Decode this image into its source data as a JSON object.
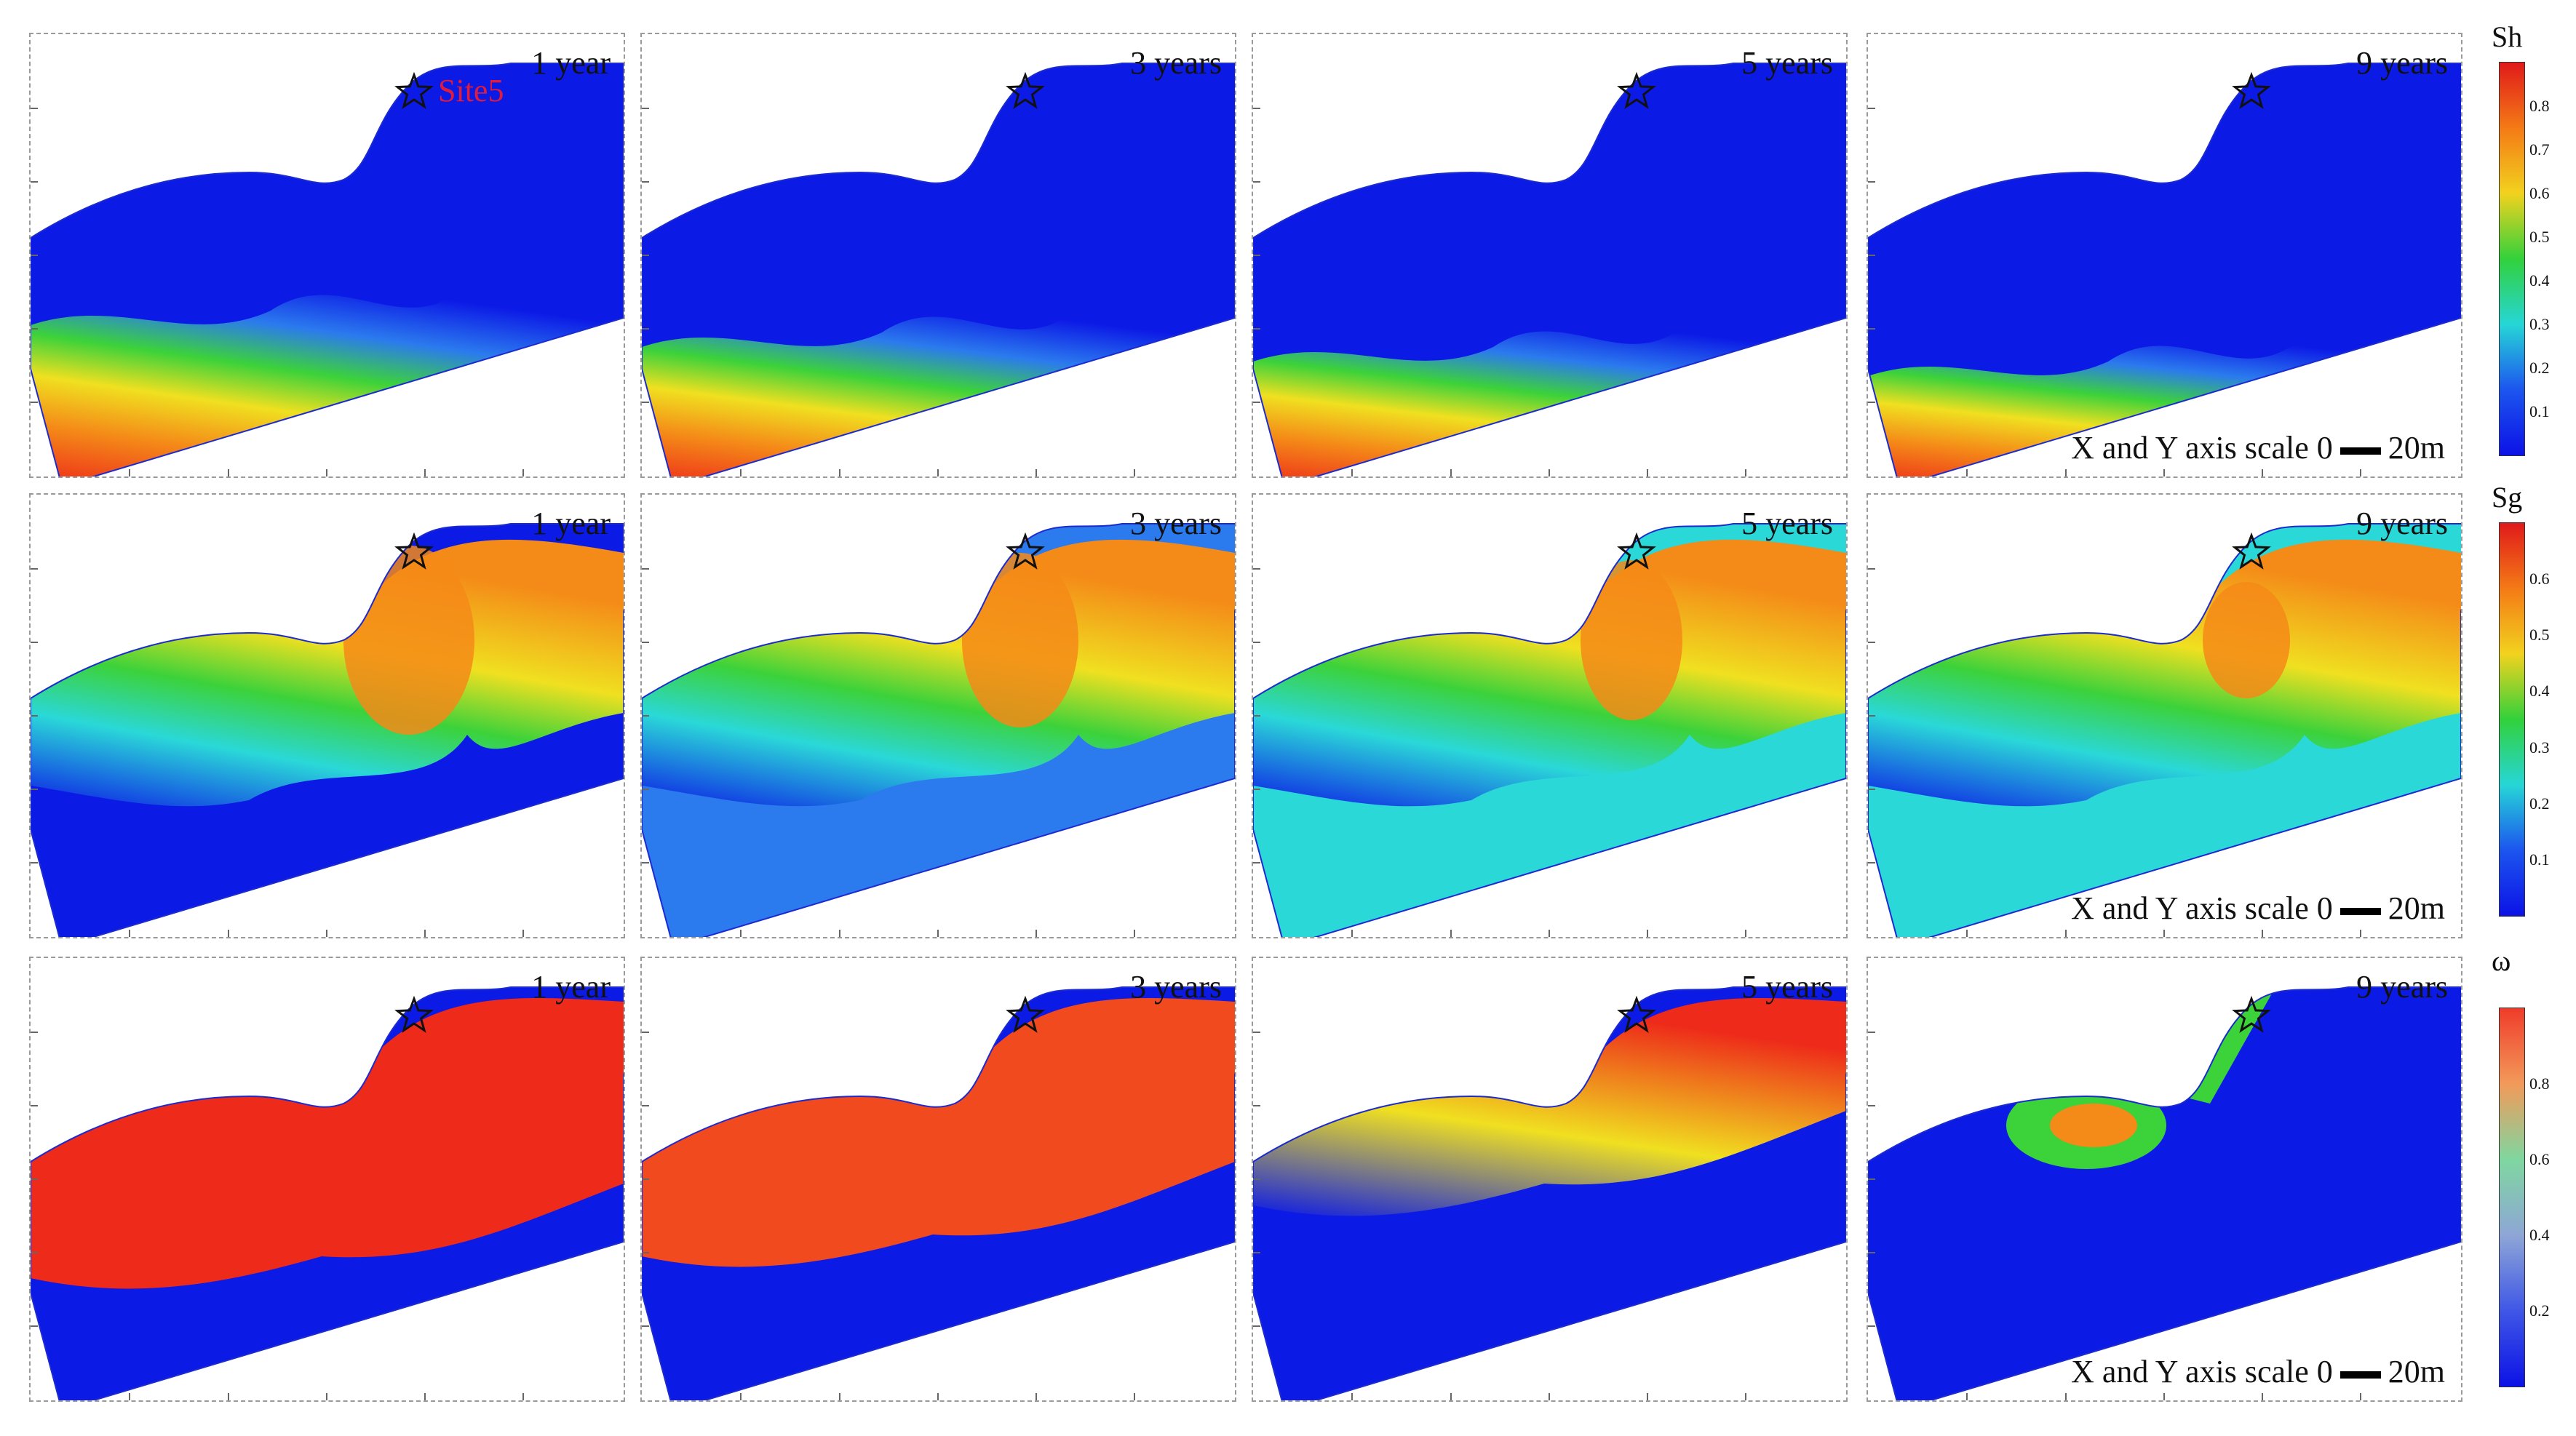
{
  "rows": [
    {
      "variable": "Sh",
      "panels": [
        {
          "time": "1 year",
          "site": "Site5"
        },
        {
          "time": "3 years"
        },
        {
          "time": "5 years"
        },
        {
          "time": "9 years",
          "scale": {
            "text": "X and Y axis scale 0",
            "unit": "20m"
          }
        }
      ],
      "colorbar": {
        "title": "Sh",
        "ticks": [
          "0.8",
          "0.7",
          "0.6",
          "0.5",
          "0.4",
          "0.3",
          "0.2",
          "0.1"
        ],
        "gradient": [
          "#e01a1a",
          "#f47a16",
          "#f2d21e",
          "#32d13b",
          "#26d6d6",
          "#1c55ef",
          "#0c12e6"
        ]
      }
    },
    {
      "variable": "Sg",
      "panels": [
        {
          "time": "1 year"
        },
        {
          "time": "3 years"
        },
        {
          "time": "5 years"
        },
        {
          "time": "9 years",
          "scale": {
            "text": "X and Y axis scale 0",
            "unit": "20m"
          }
        }
      ],
      "colorbar": {
        "title": "Sg",
        "ticks": [
          "0.6",
          "0.5",
          "0.4",
          "0.3",
          "0.2",
          "0.1"
        ],
        "gradient": [
          "#e01a1a",
          "#f47a16",
          "#f2d21e",
          "#32d13b",
          "#26d6d6",
          "#1c55ef",
          "#0c12e6"
        ]
      }
    },
    {
      "variable": "ω",
      "panels": [
        {
          "time": "1 year"
        },
        {
          "time": "3 years"
        },
        {
          "time": "5 years"
        },
        {
          "time": "9 years",
          "scale": {
            "text": "X and Y axis scale 0",
            "unit": "20m"
          }
        }
      ],
      "colorbar": {
        "title": "ω",
        "ticks": [
          "0.8",
          "0.6",
          "0.4",
          "0.2"
        ],
        "gradient": [
          "#f03c2a",
          "#f29a5a",
          "#7fd7a0",
          "#8ea6d6",
          "#3f57e6",
          "#0c12e6"
        ]
      }
    }
  ],
  "colors": {
    "blue_field": "#0c1ae6",
    "red_high": "#ee2a1a",
    "orange": "#f48a18",
    "yellow": "#f0e020",
    "green": "#3cd23a",
    "cyan": "#2ad8d8",
    "light_blue": "#2b7aee",
    "star_stroke": "#111111"
  }
}
